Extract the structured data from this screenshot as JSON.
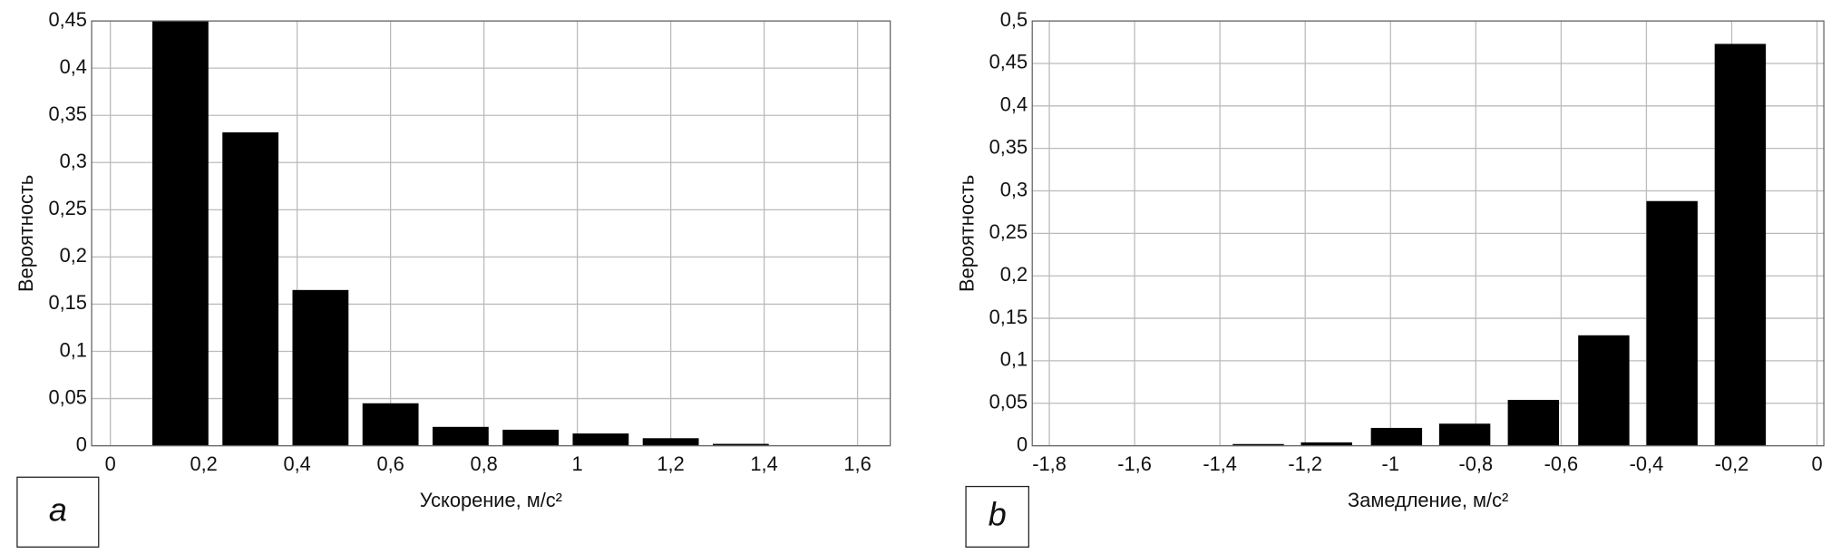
{
  "chart_data": [
    {
      "type": "bar",
      "panel": "a",
      "xlabel": "Ускорение, м/с²",
      "ylabel": "Вероятность",
      "color": "#000000",
      "grid": true,
      "x": [
        0.15,
        0.3,
        0.45,
        0.6,
        0.75,
        0.9,
        1.05,
        1.2,
        1.35,
        1.5
      ],
      "values": [
        0.45,
        0.332,
        0.165,
        0.045,
        0.02,
        0.017,
        0.013,
        0.008,
        0.002,
        0.0005
      ],
      "xlim": [
        -0.04,
        1.67
      ],
      "xticks": [
        0,
        {
          "value": 0.2,
          "label": "0,2"
        },
        {
          "value": 0.4,
          "label": "0,4"
        },
        {
          "value": 0.6,
          "label": "0,6"
        },
        {
          "value": 0.8,
          "label": "0,8"
        },
        1,
        {
          "value": 1.2,
          "label": "1,2"
        },
        {
          "value": 1.4,
          "label": "1,4"
        },
        {
          "value": 1.6,
          "label": "1,6"
        }
      ],
      "ylim": [
        0,
        0.45
      ],
      "yticks": [
        0,
        {
          "value": 0.05,
          "label": "0,05"
        },
        {
          "value": 0.1,
          "label": "0,1"
        },
        {
          "value": 0.15,
          "label": "0,15"
        },
        {
          "value": 0.2,
          "label": "0,2"
        },
        {
          "value": 0.25,
          "label": "0,25"
        },
        {
          "value": 0.3,
          "label": "0,3"
        },
        {
          "value": 0.35,
          "label": "0,35"
        },
        {
          "value": 0.4,
          "label": "0,4"
        },
        {
          "value": 0.45,
          "label": "0,45"
        }
      ]
    },
    {
      "type": "bar",
      "panel": "b",
      "xlabel": "Замедление, м/с²",
      "ylabel": "Вероятность",
      "color": "#000000",
      "grid": true,
      "x": [
        -0.18,
        -0.34,
        -0.5,
        -0.665,
        -0.826,
        -0.986,
        -1.15,
        -1.31,
        -1.47,
        -1.64
      ],
      "values": [
        0.473,
        0.288,
        0.13,
        0.054,
        0.026,
        0.021,
        0.004,
        0.002,
        0.0005,
        0.0003
      ],
      "xlim": [
        -1.84,
        0.016
      ],
      "xticks": [
        {
          "value": -1.8,
          "label": "-1,8"
        },
        {
          "value": -1.6,
          "label": "-1,6"
        },
        {
          "value": -1.4,
          "label": "-1,4"
        },
        {
          "value": -1.2,
          "label": "-1,2"
        },
        -1,
        {
          "value": -0.8,
          "label": "-0,8"
        },
        {
          "value": -0.6,
          "label": "-0,6"
        },
        {
          "value": -0.4,
          "label": "-0,4"
        },
        {
          "value": -0.2,
          "label": "-0,2"
        },
        0
      ],
      "ylim": [
        0,
        0.5
      ],
      "yticks": [
        0,
        {
          "value": 0.05,
          "label": "0,05"
        },
        {
          "value": 0.1,
          "label": "0,1"
        },
        {
          "value": 0.15,
          "label": "0,15"
        },
        {
          "value": 0.2,
          "label": "0,2"
        },
        {
          "value": 0.25,
          "label": "0,25"
        },
        {
          "value": 0.3,
          "label": "0,3"
        },
        {
          "value": 0.35,
          "label": "0,35"
        },
        {
          "value": 0.4,
          "label": "0,4"
        },
        {
          "value": 0.45,
          "label": "0,45"
        },
        {
          "value": 0.5,
          "label": "0,5"
        }
      ]
    }
  ]
}
